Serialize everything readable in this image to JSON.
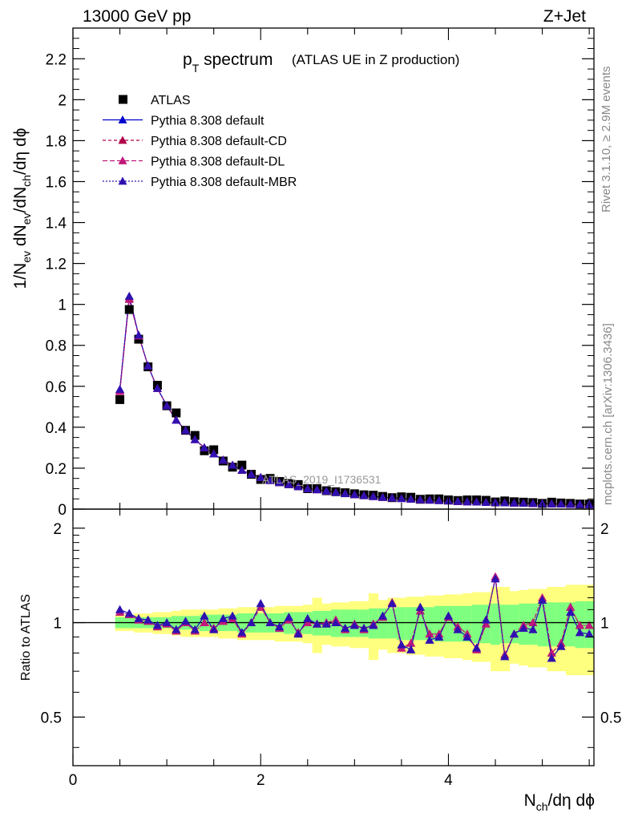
{
  "header": {
    "left": "13000 GeV pp",
    "right": "Z+Jet"
  },
  "side": {
    "rivet": "Rivet 3.1.10, ≥ 2.9M events",
    "mcplots": "mcplots.cern.ch [arXiv:1306.3436]"
  },
  "chart_data": [
    {
      "type": "scatter",
      "title_main": "p",
      "title_sub": "T",
      "title_rest": " spectrum",
      "title_note": "(ATLAS UE in Z production)",
      "ylabel": "1/N_ev dN_ev/dN_ch/dη dϕ",
      "watermark": "ATLAS_2019_I1736531",
      "xlim": [
        0,
        5.55
      ],
      "ylim": [
        0,
        2.35
      ],
      "yticks": [
        0,
        0.2,
        0.4,
        0.6,
        0.8,
        1,
        1.2,
        1.4,
        1.6,
        1.8,
        2,
        2.2
      ],
      "ytick_labels": [
        "0",
        "0.2",
        "0.4",
        "0.6",
        "0.8",
        "1",
        "1.2",
        "1.4",
        "1.6",
        "1.8",
        "2",
        "2.2"
      ],
      "legend_position": "top-left",
      "x": [
        0.5,
        0.6,
        0.7,
        0.8,
        0.9,
        1.0,
        1.1,
        1.2,
        1.3,
        1.4,
        1.5,
        1.6,
        1.7,
        1.8,
        1.9,
        2.0,
        2.1,
        2.2,
        2.3,
        2.4,
        2.5,
        2.6,
        2.7,
        2.8,
        2.9,
        3.0,
        3.1,
        3.2,
        3.3,
        3.4,
        3.5,
        3.6,
        3.7,
        3.8,
        3.9,
        4.0,
        4.1,
        4.2,
        4.3,
        4.4,
        4.5,
        4.6,
        4.7,
        4.8,
        4.9,
        5.0,
        5.1,
        5.2,
        5.3,
        5.4,
        5.5
      ],
      "series": [
        {
          "name": "ATLAS",
          "color": "#000000",
          "marker": "square",
          "values": [
            0.535,
            0.975,
            0.83,
            0.695,
            0.605,
            0.505,
            0.47,
            0.385,
            0.36,
            0.285,
            0.29,
            0.235,
            0.205,
            0.215,
            0.17,
            0.145,
            0.15,
            0.135,
            0.125,
            0.12,
            0.1,
            0.1,
            0.09,
            0.085,
            0.08,
            0.075,
            0.07,
            0.068,
            0.062,
            0.056,
            0.06,
            0.058,
            0.048,
            0.05,
            0.05,
            0.045,
            0.042,
            0.045,
            0.045,
            0.043,
            0.035,
            0.04,
            0.036,
            0.034,
            0.032,
            0.028,
            0.034,
            0.03,
            0.028,
            0.025,
            0.025
          ]
        },
        {
          "name": "Pythia 8.308 default",
          "color": "#0000cc",
          "marker": "triangle",
          "dash": "",
          "values": [
            0.585,
            1.04,
            0.85,
            0.7,
            0.59,
            0.505,
            0.435,
            0.385,
            0.34,
            0.3,
            0.27,
            0.24,
            0.215,
            0.19,
            0.17,
            0.155,
            0.14,
            0.13,
            0.12,
            0.11,
            0.1,
            0.095,
            0.088,
            0.082,
            0.076,
            0.071,
            0.066,
            0.062,
            0.058,
            0.055,
            0.052,
            0.049,
            0.046,
            0.044,
            0.042,
            0.04,
            0.038,
            0.036,
            0.035,
            0.033,
            0.032,
            0.031,
            0.03,
            0.029,
            0.028,
            0.027,
            0.026,
            0.025,
            0.024,
            0.023,
            0.022
          ]
        },
        {
          "name": "Pythia 8.308 default-CD",
          "color": "#b0004a",
          "marker": "triangle",
          "dash": "4,3",
          "values": [
            0.58,
            1.03,
            0.848,
            0.7,
            0.59,
            0.505,
            0.435,
            0.385,
            0.34,
            0.3,
            0.27,
            0.24,
            0.215,
            0.19,
            0.17,
            0.155,
            0.14,
            0.13,
            0.12,
            0.11,
            0.1,
            0.095,
            0.088,
            0.082,
            0.076,
            0.071,
            0.066,
            0.062,
            0.058,
            0.055,
            0.052,
            0.049,
            0.046,
            0.044,
            0.042,
            0.04,
            0.038,
            0.036,
            0.035,
            0.033,
            0.032,
            0.031,
            0.03,
            0.029,
            0.028,
            0.027,
            0.026,
            0.025,
            0.024,
            0.023,
            0.022
          ]
        },
        {
          "name": "Pythia 8.308 default-DL",
          "color": "#c0187a",
          "marker": "triangle",
          "dash": "6,3",
          "values": [
            0.575,
            1.025,
            0.846,
            0.7,
            0.59,
            0.505,
            0.435,
            0.385,
            0.34,
            0.3,
            0.27,
            0.24,
            0.215,
            0.19,
            0.17,
            0.155,
            0.14,
            0.13,
            0.12,
            0.11,
            0.1,
            0.095,
            0.088,
            0.082,
            0.076,
            0.071,
            0.066,
            0.062,
            0.058,
            0.055,
            0.052,
            0.049,
            0.046,
            0.044,
            0.042,
            0.04,
            0.038,
            0.036,
            0.035,
            0.033,
            0.032,
            0.031,
            0.03,
            0.029,
            0.028,
            0.027,
            0.026,
            0.025,
            0.024,
            0.023,
            0.022
          ]
        },
        {
          "name": "Pythia 8.308 default-MBR",
          "color": "#3010b0",
          "marker": "triangle",
          "dash": "2,2",
          "values": [
            0.585,
            1.04,
            0.85,
            0.7,
            0.59,
            0.505,
            0.435,
            0.385,
            0.34,
            0.3,
            0.27,
            0.24,
            0.215,
            0.19,
            0.17,
            0.155,
            0.14,
            0.13,
            0.12,
            0.11,
            0.1,
            0.095,
            0.088,
            0.082,
            0.076,
            0.071,
            0.066,
            0.062,
            0.058,
            0.055,
            0.052,
            0.049,
            0.046,
            0.044,
            0.042,
            0.04,
            0.038,
            0.036,
            0.035,
            0.033,
            0.032,
            0.031,
            0.03,
            0.029,
            0.028,
            0.027,
            0.026,
            0.025,
            0.024,
            0.023,
            0.022
          ]
        }
      ]
    },
    {
      "type": "scatter",
      "ylabel": "Ratio to ATLAS",
      "xlabel": "N_ch/dη dϕ",
      "xlim": [
        0,
        5.55
      ],
      "ylim": [
        0.35,
        2.3
      ],
      "y_scale": "log",
      "xticks": [
        0,
        2,
        4
      ],
      "xtick_labels": [
        "0",
        "2",
        "4"
      ],
      "yticks": [
        0.5,
        1,
        2
      ],
      "ytick_labels": [
        "0.5",
        "1",
        "2"
      ],
      "x": [
        0.5,
        0.6,
        0.7,
        0.8,
        0.9,
        1.0,
        1.1,
        1.2,
        1.3,
        1.4,
        1.5,
        1.6,
        1.7,
        1.8,
        1.9,
        2.0,
        2.1,
        2.2,
        2.3,
        2.4,
        2.5,
        2.6,
        2.7,
        2.8,
        2.9,
        3.0,
        3.1,
        3.2,
        3.3,
        3.4,
        3.5,
        3.6,
        3.7,
        3.8,
        3.9,
        4.0,
        4.1,
        4.2,
        4.3,
        4.4,
        4.5,
        4.6,
        4.7,
        4.8,
        4.9,
        5.0,
        5.1,
        5.2,
        5.3,
        5.4,
        5.5
      ],
      "band_inner": [
        0.04,
        0.04,
        0.04,
        0.04,
        0.04,
        0.04,
        0.05,
        0.05,
        0.05,
        0.06,
        0.06,
        0.06,
        0.06,
        0.07,
        0.07,
        0.07,
        0.07,
        0.07,
        0.08,
        0.08,
        0.08,
        0.09,
        0.09,
        0.1,
        0.1,
        0.1,
        0.1,
        0.11,
        0.11,
        0.11,
        0.12,
        0.12,
        0.12,
        0.12,
        0.13,
        0.13,
        0.13,
        0.13,
        0.14,
        0.14,
        0.15,
        0.14,
        0.14,
        0.15,
        0.15,
        0.16,
        0.16,
        0.16,
        0.16,
        0.17,
        0.17
      ],
      "band_outer": [
        0.06,
        0.06,
        0.07,
        0.07,
        0.08,
        0.08,
        0.09,
        0.1,
        0.1,
        0.1,
        0.1,
        0.11,
        0.11,
        0.12,
        0.12,
        0.12,
        0.12,
        0.13,
        0.13,
        0.13,
        0.14,
        0.2,
        0.15,
        0.16,
        0.16,
        0.17,
        0.17,
        0.24,
        0.18,
        0.2,
        0.2,
        0.21,
        0.21,
        0.22,
        0.22,
        0.23,
        0.23,
        0.24,
        0.25,
        0.25,
        0.3,
        0.3,
        0.26,
        0.27,
        0.28,
        0.28,
        0.3,
        0.3,
        0.32,
        0.32,
        0.32
      ],
      "series": [
        {
          "name": "Pythia 8.308 default",
          "color": "#0000cc",
          "dash": "",
          "values": [
            1.1,
            1.07,
            1.03,
            1.02,
            0.98,
            1.0,
            0.95,
            1.01,
            0.95,
            1.05,
            0.95,
            1.03,
            1.05,
            0.93,
            1.0,
            1.15,
            1.0,
            0.97,
            1.04,
            0.92,
            1.03,
            0.99,
            0.99,
            1.0,
            0.96,
            0.98,
            0.96,
            0.98,
            1.05,
            1.15,
            0.85,
            0.82,
            1.12,
            0.88,
            0.9,
            1.05,
            0.95,
            0.9,
            0.83,
            1.02,
            1.38,
            0.78,
            0.92,
            0.96,
            0.95,
            1.18,
            0.77,
            0.84,
            1.08,
            0.93,
            0.92
          ]
        },
        {
          "name": "Pythia 8.308 default-CD",
          "color": "#b0004a",
          "dash": "4,3",
          "values": [
            1.08,
            1.06,
            1.02,
            1.01,
            0.97,
            0.99,
            0.94,
            1.0,
            0.94,
            1.0,
            0.96,
            1.01,
            1.03,
            0.92,
            1.0,
            1.12,
            1.0,
            0.96,
            1.02,
            0.93,
            1.0,
            0.99,
            1.0,
            1.02,
            0.95,
            0.99,
            0.95,
            0.99,
            1.04,
            1.16,
            0.83,
            0.86,
            1.09,
            0.92,
            0.92,
            1.04,
            0.97,
            0.92,
            0.82,
            0.99,
            1.4,
            0.79,
            0.92,
            0.98,
            1.0,
            1.2,
            0.8,
            0.86,
            1.12,
            0.98,
            0.98
          ]
        },
        {
          "name": "Pythia 8.308 default-DL",
          "color": "#c0187a",
          "dash": "6,3",
          "values": [
            1.08,
            1.06,
            1.02,
            1.01,
            0.97,
            0.99,
            0.94,
            1.0,
            0.94,
            1.0,
            0.96,
            1.01,
            1.03,
            0.92,
            1.0,
            1.12,
            1.0,
            0.96,
            1.02,
            0.93,
            1.0,
            0.99,
            1.0,
            1.02,
            0.95,
            0.99,
            0.95,
            0.99,
            1.04,
            1.16,
            0.83,
            0.86,
            1.09,
            0.92,
            0.92,
            1.04,
            0.97,
            0.92,
            0.82,
            0.99,
            1.4,
            0.79,
            0.92,
            0.98,
            1.0,
            1.2,
            0.8,
            0.86,
            1.12,
            0.98,
            0.98
          ]
        },
        {
          "name": "Pythia 8.308 default-MBR",
          "color": "#3010b0",
          "dash": "2,2",
          "values": [
            1.1,
            1.07,
            1.03,
            1.02,
            0.98,
            1.0,
            0.95,
            1.01,
            0.95,
            1.05,
            0.95,
            1.03,
            1.05,
            0.93,
            1.0,
            1.15,
            1.0,
            0.97,
            1.04,
            0.92,
            1.03,
            0.99,
            0.99,
            1.0,
            0.96,
            0.98,
            0.96,
            0.98,
            1.05,
            1.15,
            0.85,
            0.82,
            1.12,
            0.88,
            0.9,
            1.05,
            0.95,
            0.9,
            0.83,
            1.02,
            1.38,
            0.78,
            0.92,
            0.96,
            0.95,
            1.18,
            0.77,
            0.84,
            1.08,
            0.93,
            0.92
          ]
        }
      ]
    }
  ]
}
